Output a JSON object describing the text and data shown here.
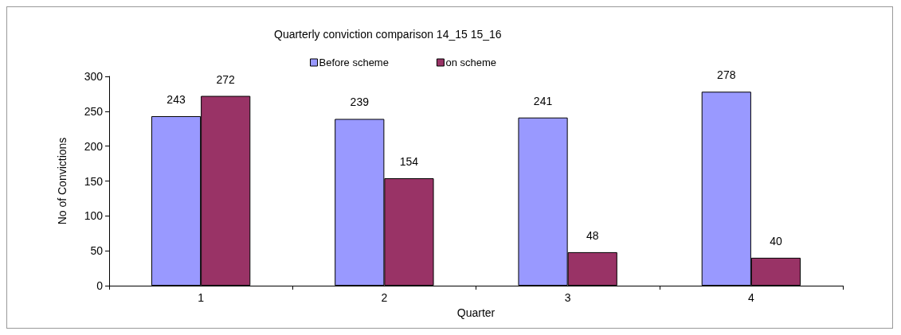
{
  "chart_data": {
    "type": "bar",
    "title": "Quarterly conviction comparison 14_15 15_16",
    "xlabel": "Quarter",
    "ylabel": "No of Convictions",
    "categories": [
      "1",
      "2",
      "3",
      "4"
    ],
    "series": [
      {
        "name": "Before scheme",
        "color": "#9999ff",
        "values": [
          243,
          239,
          241,
          278
        ]
      },
      {
        "name": "on scheme",
        "color": "#993366",
        "values": [
          272,
          154,
          48,
          40
        ]
      }
    ],
    "ylim": [
      0,
      300
    ],
    "yticks": [
      0,
      50,
      100,
      150,
      200,
      250,
      300
    ],
    "grid": false,
    "legend": "top",
    "data_labels": true
  }
}
